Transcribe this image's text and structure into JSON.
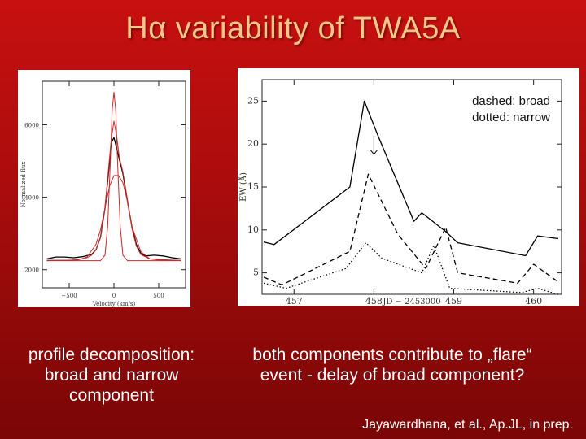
{
  "title": "Hα variability of TWA5A",
  "captions": {
    "left": "profile decomposition: broad and narrow component",
    "right": "both components contribute to „flare“ event - delay of broad component?"
  },
  "citation": "Jayawardhana, et al., Ap.JL, in prep.",
  "colors": {
    "observed_line": "#000000",
    "fit_line": "#cc2a2a",
    "title_text": "#f2c88a"
  },
  "chart_data": [
    {
      "type": "line",
      "xlabel": "Velocity (km/s)",
      "ylabel": "Normalized flux",
      "xlim": [
        -800,
        800
      ],
      "ylim": [
        1500,
        7200
      ],
      "xticks": [
        {
          "value": -500,
          "label": "−500"
        },
        {
          "value": 0,
          "label": "0"
        },
        {
          "value": 500,
          "label": "500"
        }
      ],
      "yticks": [
        {
          "value": 2000,
          "label": "2000"
        },
        {
          "value": 4000,
          "label": "4000"
        },
        {
          "value": 6000,
          "label": "6000"
        }
      ],
      "series": [
        {
          "style": "observed",
          "x": [
            -750,
            -650,
            -550,
            -450,
            -350,
            -250,
            -200,
            -150,
            -100,
            -60,
            -30,
            0,
            30,
            60,
            100,
            150,
            200,
            250,
            300,
            350,
            450,
            550,
            650,
            750
          ],
          "y": [
            2300,
            2350,
            2350,
            2330,
            2360,
            2420,
            2550,
            2900,
            3700,
            4700,
            5500,
            5650,
            5350,
            5050,
            4650,
            3900,
            3200,
            2700,
            2450,
            2380,
            2400,
            2380,
            2330,
            2300
          ]
        },
        {
          "style": "fit-sum",
          "x": [
            -750,
            -500,
            -400,
            -300,
            -250,
            -200,
            -150,
            -100,
            -60,
            -30,
            0,
            30,
            60,
            100,
            150,
            200,
            250,
            300,
            400,
            500,
            750
          ],
          "y": [
            2260,
            2260,
            2280,
            2330,
            2400,
            2550,
            2900,
            3700,
            4800,
            5600,
            6100,
            5700,
            5100,
            4700,
            3950,
            3150,
            2650,
            2420,
            2300,
            2270,
            2260
          ]
        },
        {
          "style": "fit-narrow",
          "x": [
            -750,
            -150,
            -100,
            -70,
            -40,
            -20,
            0,
            20,
            40,
            70,
            100,
            150,
            750
          ],
          "y": [
            2250,
            2250,
            2400,
            3200,
            5000,
            6400,
            6900,
            6400,
            5000,
            3200,
            2400,
            2250,
            2250
          ]
        },
        {
          "style": "fit-broad",
          "x": [
            -750,
            -400,
            -300,
            -200,
            -150,
            -100,
            -50,
            0,
            50,
            100,
            150,
            200,
            300,
            400,
            750
          ],
          "y": [
            2250,
            2270,
            2350,
            2700,
            3100,
            3700,
            4300,
            4600,
            4600,
            4400,
            3900,
            3200,
            2500,
            2300,
            2250
          ]
        }
      ]
    },
    {
      "type": "line",
      "xlabel": "JD − 2453000",
      "ylabel": "EW (Å)",
      "xlim": [
        456.6,
        460.35
      ],
      "ylim": [
        2.5,
        27.5
      ],
      "xticks": [
        {
          "value": 457,
          "label": "457"
        },
        {
          "value": 458,
          "label": "458"
        },
        {
          "value": 459,
          "label": "459"
        },
        {
          "value": 460,
          "label": "460"
        }
      ],
      "yticks": [
        {
          "value": 5,
          "label": "5"
        },
        {
          "value": 10,
          "label": "10"
        },
        {
          "value": 15,
          "label": "15"
        },
        {
          "value": 20,
          "label": "20"
        },
        {
          "value": 25,
          "label": "25"
        }
      ],
      "legend": {
        "position": "top-right",
        "entries": [
          "dashed: broad",
          "dotted: narrow"
        ]
      },
      "annotation": {
        "type": "arrow",
        "x": 458.0,
        "y_from": 21.0,
        "y_to": 18.8
      },
      "series": [
        {
          "style": "solid",
          "x": [
            456.62,
            456.75,
            457.7,
            457.88,
            458.05,
            458.5,
            458.6,
            458.9,
            459.05,
            459.9,
            460.05,
            460.3
          ],
          "y": [
            8.6,
            8.3,
            15.0,
            25.0,
            21.0,
            11.0,
            12.0,
            9.8,
            8.5,
            7.0,
            9.3,
            9.0
          ]
        },
        {
          "style": "dashed",
          "x": [
            456.62,
            456.85,
            457.7,
            457.93,
            458.3,
            458.65,
            458.9,
            459.05,
            459.8,
            460.0,
            460.3
          ],
          "y": [
            4.5,
            3.6,
            7.5,
            16.5,
            9.5,
            5.5,
            10.3,
            5.0,
            3.8,
            6.0,
            4.0
          ]
        },
        {
          "style": "dotted",
          "x": [
            456.62,
            456.9,
            457.65,
            457.9,
            458.1,
            458.6,
            458.75,
            458.95,
            459.85,
            460.05,
            460.3
          ],
          "y": [
            3.8,
            3.2,
            5.5,
            8.5,
            6.7,
            5.0,
            8.2,
            3.2,
            2.7,
            3.2,
            2.5
          ]
        }
      ]
    }
  ]
}
